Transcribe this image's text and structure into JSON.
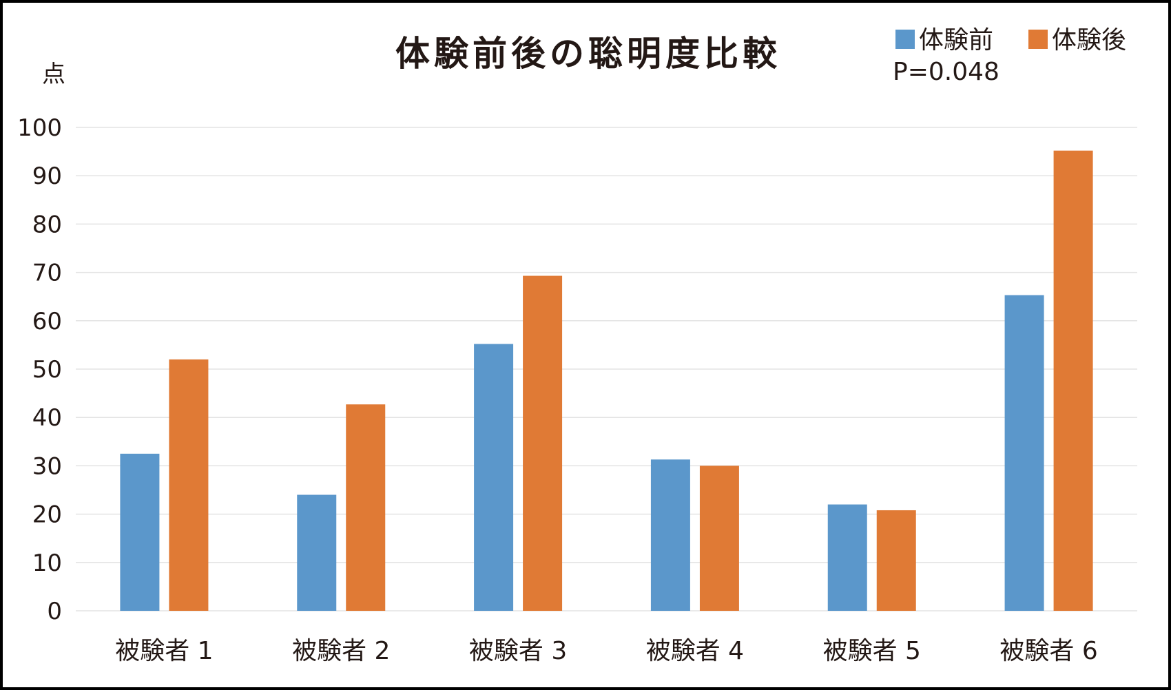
{
  "chart_data": {
    "type": "bar",
    "title": "体験前後の聡明度比較",
    "ylabel": "点",
    "xlabel": "",
    "ylim": [
      0,
      100
    ],
    "yticks": [
      0,
      10,
      20,
      30,
      40,
      50,
      60,
      70,
      80,
      90,
      100
    ],
    "grid": true,
    "legend_position": "top-right",
    "annotation": "P=0.048",
    "categories": [
      "被験者 1",
      "被験者 2",
      "被験者 3",
      "被験者 4",
      "被験者 5",
      "被験者 6"
    ],
    "series": [
      {
        "name": "体験前",
        "color": "#5B97CB",
        "values": [
          32.5,
          24,
          55.2,
          31.3,
          22,
          65.3
        ]
      },
      {
        "name": "体験後",
        "color": "#E07A35",
        "values": [
          52,
          42.7,
          69.3,
          30,
          20.8,
          95.2
        ]
      }
    ]
  }
}
